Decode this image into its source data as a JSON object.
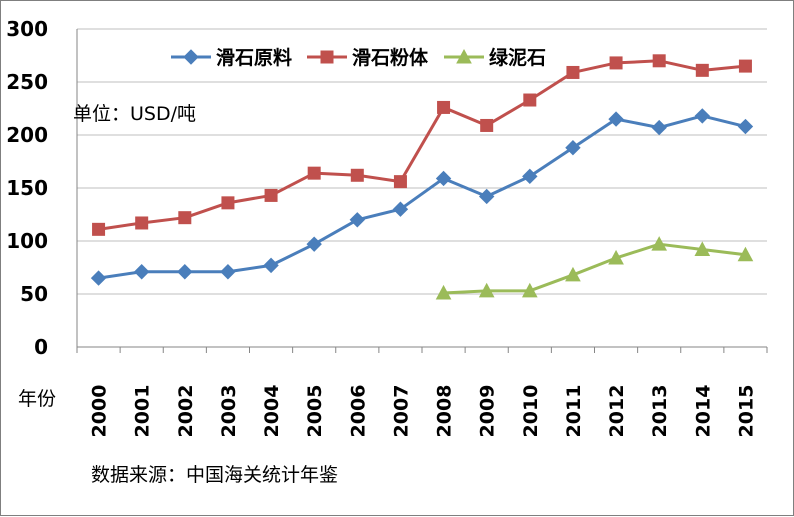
{
  "chart_data": {
    "type": "line",
    "unit_label": "单位：USD/吨",
    "xlabel": "年份",
    "source_note": "数据来源：中国海关统计年鉴",
    "categories": [
      "2000",
      "2001",
      "2002",
      "2003",
      "2004",
      "2005",
      "2006",
      "2007",
      "2008",
      "2009",
      "2010",
      "2011",
      "2012",
      "2013",
      "2014",
      "2015"
    ],
    "ylim": [
      0,
      300
    ],
    "yticks": [
      0,
      50,
      100,
      150,
      200,
      250,
      300
    ],
    "grid": true,
    "legend_position": "top",
    "series": [
      {
        "name": "滑石原料",
        "color": "#4a7ebb",
        "marker": "diamond",
        "values": [
          65,
          71,
          71,
          71,
          77,
          97,
          120,
          130,
          159,
          142,
          161,
          188,
          215,
          207,
          218,
          208
        ]
      },
      {
        "name": "滑石粉体",
        "color": "#c0504d",
        "marker": "square",
        "values": [
          111,
          117,
          122,
          136,
          143,
          164,
          162,
          156,
          226,
          209,
          233,
          259,
          268,
          270,
          261,
          265
        ]
      },
      {
        "name": "绿泥石",
        "color": "#9bbb59",
        "marker": "triangle",
        "values": [
          null,
          null,
          null,
          null,
          null,
          null,
          null,
          null,
          51,
          53,
          53,
          68,
          84,
          97,
          92,
          87
        ]
      }
    ]
  }
}
